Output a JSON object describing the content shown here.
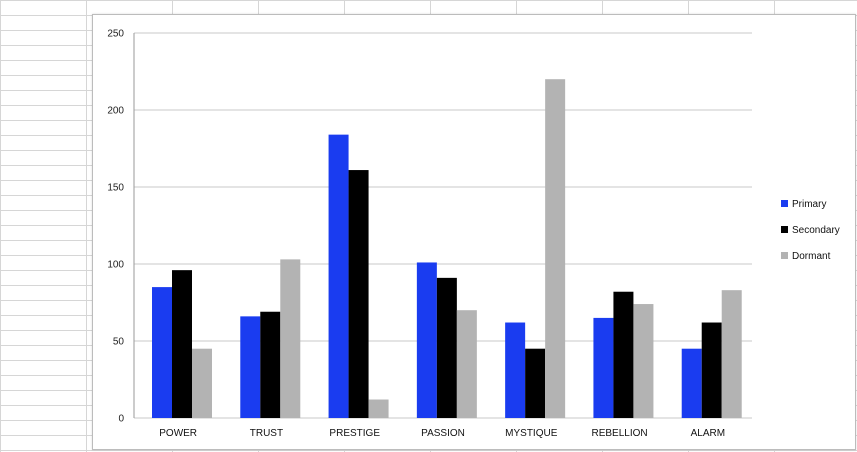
{
  "chart_data": {
    "type": "bar",
    "categories": [
      "POWER",
      "TRUST",
      "PRESTIGE",
      "PASSION",
      "MYSTIQUE",
      "REBELLION",
      "ALARM"
    ],
    "series": [
      {
        "name": "Primary",
        "color": "#1a3cf0",
        "values": [
          85,
          66,
          184,
          101,
          62,
          65,
          45
        ]
      },
      {
        "name": "Secondary",
        "color": "#000000",
        "values": [
          96,
          69,
          161,
          91,
          45,
          82,
          62
        ]
      },
      {
        "name": "Dormant",
        "color": "#b3b3b3",
        "values": [
          45,
          103,
          12,
          70,
          220,
          74,
          83
        ]
      }
    ],
    "ylim": [
      0,
      250
    ],
    "yticks": [
      0,
      50,
      100,
      150,
      200,
      250
    ],
    "grid": true,
    "legend": "right"
  }
}
